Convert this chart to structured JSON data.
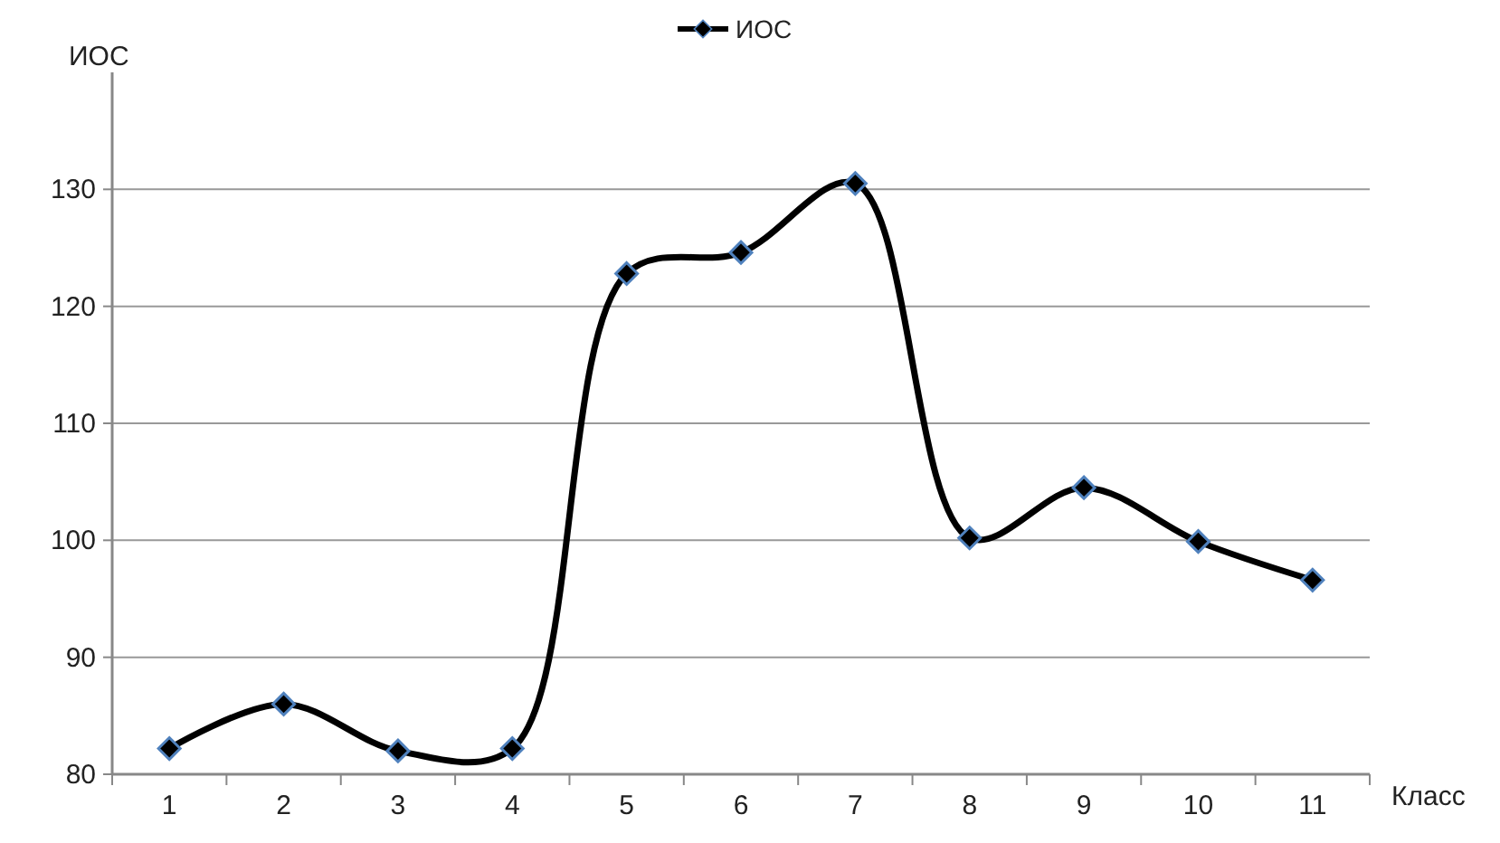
{
  "chart_data": {
    "type": "line",
    "xlabel": "Класс",
    "ylabel": "ИОС",
    "categories": [
      "1",
      "2",
      "3",
      "4",
      "5",
      "6",
      "7",
      "8",
      "9",
      "10",
      "11"
    ],
    "series": [
      {
        "name": "ИОС",
        "color": "#000000",
        "values": [
          82.2,
          86,
          82,
          82.2,
          122.8,
          124.6,
          130.5,
          100.2,
          104.5,
          99.9,
          96.6
        ]
      }
    ],
    "ylim": [
      80,
      140
    ],
    "yticks": [
      80,
      90,
      100,
      110,
      120,
      130
    ],
    "grid": "y",
    "legend": "top",
    "marker": "diamond",
    "line_style": "solid"
  }
}
